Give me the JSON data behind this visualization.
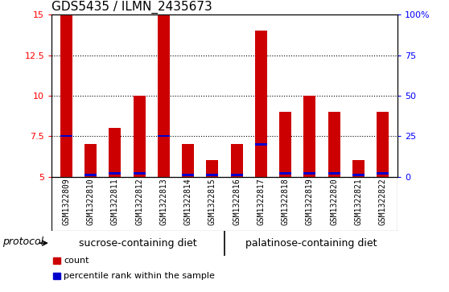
{
  "title": "GDS5435 / ILMN_2435673",
  "samples": [
    "GSM1322809",
    "GSM1322810",
    "GSM1322811",
    "GSM1322812",
    "GSM1322813",
    "GSM1322814",
    "GSM1322815",
    "GSM1322816",
    "GSM1322817",
    "GSM1322818",
    "GSM1322819",
    "GSM1322820",
    "GSM1322821",
    "GSM1322822"
  ],
  "counts": [
    15.0,
    7.0,
    8.0,
    10.0,
    15.0,
    7.0,
    6.0,
    7.0,
    14.0,
    9.0,
    10.0,
    9.0,
    6.0,
    9.0
  ],
  "percentile_values": [
    7.5,
    5.1,
    5.2,
    5.2,
    7.5,
    5.1,
    5.1,
    5.1,
    7.0,
    5.2,
    5.2,
    5.2,
    5.1,
    5.2
  ],
  "ymin": 5.0,
  "ymax": 15.0,
  "yticks": [
    5,
    7.5,
    10,
    12.5,
    15
  ],
  "ytick_labels": [
    "5",
    "7.5",
    "10",
    "12.5",
    "15"
  ],
  "right_ytick_labels": [
    "0",
    "25",
    "50",
    "75",
    "100%"
  ],
  "bar_color": "#cc0000",
  "percentile_color": "#0000cc",
  "bar_width": 0.5,
  "groups": [
    {
      "label": "sucrose-containing diet",
      "start": 0,
      "end": 7
    },
    {
      "label": "palatinose-containing diet",
      "start": 7,
      "end": 14
    }
  ],
  "group_color": "#90ee90",
  "sample_bg_color": "#d3d3d3",
  "protocol_label": "protocol",
  "legend_count_label": "count",
  "legend_percentile_label": "percentile rank within the sample",
  "title_fontsize": 11,
  "tick_fontsize": 8,
  "sample_fontsize": 7,
  "group_label_fontsize": 9,
  "legend_fontsize": 8,
  "protocol_fontsize": 9
}
